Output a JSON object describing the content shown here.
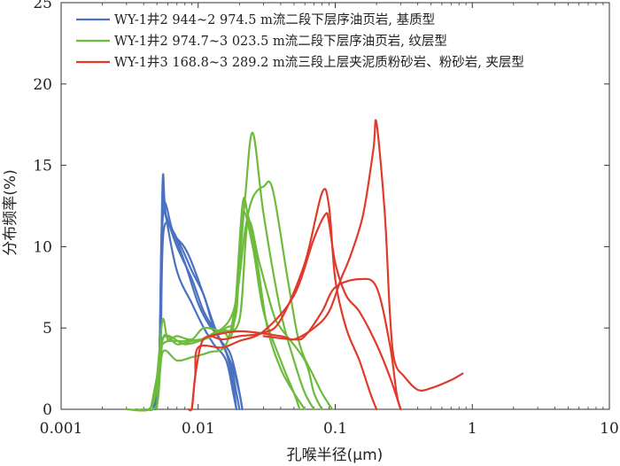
{
  "chart_data": {
    "type": "line",
    "xlabel": "孔喉半径(μm)",
    "ylabel": "分布频率(%)",
    "xscale": "log",
    "xlim": [
      0.001,
      10
    ],
    "ylim": [
      0,
      25
    ],
    "x_ticks": [
      "0.001",
      "0.01",
      "0.1",
      "1",
      "10"
    ],
    "y_ticks": [
      "0",
      "5",
      "10",
      "15",
      "20",
      "25"
    ],
    "legend_position": "top-left",
    "grid": false,
    "colors": {
      "blue": "#4a72c0",
      "green": "#6cbb3c",
      "red": "#e03a2a"
    },
    "legend": [
      {
        "label": "WY-1井2 944~2 974.5 m流二段下层序油页岩, 基质型",
        "color": "#4a72c0"
      },
      {
        "label": "WY-1井2 974.7~3 023.5 m流二段下层序油页岩, 纹层型",
        "color": "#6cbb3c"
      },
      {
        "label": "WY-1井3 168.8~3 289.2 m流三段上层夹泥质粉砂岩、粉砂岩, 夹层型",
        "color": "#e03a2a"
      }
    ],
    "series": [
      {
        "group": "blue",
        "color": "#4a72c0",
        "points": [
          [
            0.0047,
            0
          ],
          [
            0.0052,
            3
          ],
          [
            0.0055,
            14
          ],
          [
            0.0058,
            12
          ],
          [
            0.007,
            8.5
          ],
          [
            0.009,
            6.5
          ],
          [
            0.011,
            5
          ],
          [
            0.013,
            4
          ],
          [
            0.016,
            3
          ],
          [
            0.018,
            1
          ],
          [
            0.019,
            0
          ]
        ]
      },
      {
        "group": "blue",
        "color": "#4a72c0",
        "points": [
          [
            0.0048,
            0
          ],
          [
            0.0052,
            3
          ],
          [
            0.0055,
            12.6
          ],
          [
            0.0058,
            12
          ],
          [
            0.007,
            10
          ],
          [
            0.009,
            8
          ],
          [
            0.011,
            6
          ],
          [
            0.014,
            4.5
          ],
          [
            0.017,
            3
          ],
          [
            0.019,
            1
          ],
          [
            0.02,
            0
          ]
        ]
      },
      {
        "group": "blue",
        "color": "#4a72c0",
        "points": [
          [
            0.0048,
            0
          ],
          [
            0.0052,
            3
          ],
          [
            0.0055,
            11.6
          ],
          [
            0.006,
            11.5
          ],
          [
            0.0075,
            10
          ],
          [
            0.009,
            8.5
          ],
          [
            0.011,
            7
          ],
          [
            0.013,
            5
          ],
          [
            0.016,
            3.5
          ],
          [
            0.018,
            1.5
          ],
          [
            0.019,
            0
          ]
        ]
      },
      {
        "group": "blue",
        "color": "#4a72c0",
        "points": [
          [
            0.0049,
            0
          ],
          [
            0.0053,
            3
          ],
          [
            0.0056,
            11
          ],
          [
            0.007,
            10.5
          ],
          [
            0.0085,
            9.5
          ],
          [
            0.011,
            7
          ],
          [
            0.014,
            4.5
          ],
          [
            0.017,
            3.5
          ],
          [
            0.019,
            2
          ],
          [
            0.021,
            0
          ]
        ]
      },
      {
        "group": "blue",
        "color": "#4a72c0",
        "points": [
          [
            0.0048,
            0
          ],
          [
            0.0052,
            3
          ],
          [
            0.0055,
            12.3
          ],
          [
            0.0065,
            11
          ],
          [
            0.008,
            9
          ],
          [
            0.01,
            6.5
          ],
          [
            0.012,
            5.2
          ],
          [
            0.014,
            4.5
          ],
          [
            0.016,
            3.5
          ],
          [
            0.018,
            2.5
          ],
          [
            0.02,
            1
          ],
          [
            0.021,
            0
          ]
        ]
      },
      {
        "group": "green",
        "color": "#6cbb3c",
        "points": [
          [
            0.003,
            0
          ],
          [
            0.0045,
            0.1
          ],
          [
            0.005,
            2
          ],
          [
            0.0055,
            5.5
          ],
          [
            0.006,
            4.3
          ],
          [
            0.007,
            4.5
          ],
          [
            0.009,
            4.3
          ],
          [
            0.011,
            5
          ],
          [
            0.015,
            4.8
          ],
          [
            0.018,
            5
          ],
          [
            0.021,
            12.5
          ],
          [
            0.023,
            12
          ],
          [
            0.027,
            9
          ],
          [
            0.032,
            5
          ],
          [
            0.04,
            2.5
          ],
          [
            0.05,
            1
          ],
          [
            0.06,
            0
          ]
        ]
      },
      {
        "group": "green",
        "color": "#6cbb3c",
        "points": [
          [
            0.0035,
            0
          ],
          [
            0.0045,
            0.1
          ],
          [
            0.0052,
            2
          ],
          [
            0.0056,
            4.5
          ],
          [
            0.007,
            4
          ],
          [
            0.009,
            4.2
          ],
          [
            0.011,
            4.3
          ],
          [
            0.013,
            4.7
          ],
          [
            0.016,
            5
          ],
          [
            0.019,
            6
          ],
          [
            0.021,
            12
          ],
          [
            0.025,
            10
          ],
          [
            0.03,
            6
          ],
          [
            0.04,
            3
          ],
          [
            0.05,
            1
          ],
          [
            0.055,
            0
          ]
        ]
      },
      {
        "group": "green",
        "color": "#6cbb3c",
        "points": [
          [
            0.004,
            0
          ],
          [
            0.005,
            0.3
          ],
          [
            0.0055,
            3.5
          ],
          [
            0.007,
            3
          ],
          [
            0.009,
            3.2
          ],
          [
            0.012,
            3.5
          ],
          [
            0.016,
            4
          ],
          [
            0.019,
            7
          ],
          [
            0.022,
            13
          ],
          [
            0.025,
            17
          ],
          [
            0.03,
            12
          ],
          [
            0.04,
            6
          ],
          [
            0.05,
            3
          ],
          [
            0.06,
            1
          ],
          [
            0.07,
            0
          ]
        ]
      },
      {
        "group": "green",
        "color": "#6cbb3c",
        "points": [
          [
            0.0045,
            0
          ],
          [
            0.005,
            2
          ],
          [
            0.0055,
            4
          ],
          [
            0.008,
            4.2
          ],
          [
            0.012,
            4.5
          ],
          [
            0.018,
            6
          ],
          [
            0.022,
            11
          ],
          [
            0.025,
            13
          ],
          [
            0.03,
            13.7
          ],
          [
            0.035,
            13.5
          ],
          [
            0.045,
            8
          ],
          [
            0.055,
            4
          ],
          [
            0.07,
            2
          ],
          [
            0.08,
            1
          ],
          [
            0.095,
            0
          ]
        ]
      },
      {
        "group": "green",
        "color": "#6cbb3c",
        "points": [
          [
            0.005,
            0
          ],
          [
            0.0055,
            4.3
          ],
          [
            0.008,
            4
          ],
          [
            0.011,
            4.3
          ],
          [
            0.015,
            4.8
          ],
          [
            0.02,
            5.5
          ],
          [
            0.023,
            11.5
          ],
          [
            0.028,
            9
          ],
          [
            0.035,
            6
          ],
          [
            0.04,
            5
          ],
          [
            0.06,
            3
          ],
          [
            0.07,
            1
          ],
          [
            0.08,
            0
          ]
        ]
      },
      {
        "group": "red",
        "color": "#e03a2a",
        "points": [
          [
            0.0085,
            0
          ],
          [
            0.009,
            0.1
          ],
          [
            0.0095,
            2
          ],
          [
            0.0105,
            4
          ],
          [
            0.012,
            4.5
          ],
          [
            0.015,
            4.3
          ],
          [
            0.02,
            4.5
          ],
          [
            0.03,
            4.7
          ],
          [
            0.04,
            5.5
          ],
          [
            0.06,
            9
          ],
          [
            0.08,
            13.3
          ],
          [
            0.09,
            12.5
          ],
          [
            0.1,
            8
          ],
          [
            0.12,
            5
          ],
          [
            0.15,
            3
          ],
          [
            0.18,
            1
          ],
          [
            0.2,
            0
          ]
        ]
      },
      {
        "group": "red",
        "color": "#e03a2a",
        "points": [
          [
            0.009,
            0
          ],
          [
            0.0095,
            2
          ],
          [
            0.01,
            3.8
          ],
          [
            0.015,
            3.8
          ],
          [
            0.02,
            4.2
          ],
          [
            0.03,
            4.8
          ],
          [
            0.05,
            7
          ],
          [
            0.07,
            10.5
          ],
          [
            0.085,
            12
          ],
          [
            0.09,
            11.5
          ],
          [
            0.1,
            9
          ],
          [
            0.12,
            7
          ],
          [
            0.15,
            6
          ],
          [
            0.2,
            4
          ],
          [
            0.25,
            2
          ],
          [
            0.3,
            0
          ]
        ]
      },
      {
        "group": "red",
        "color": "#e03a2a",
        "points": [
          [
            0.012,
            4.5
          ],
          [
            0.02,
            4.8
          ],
          [
            0.04,
            4.5
          ],
          [
            0.05,
            4.3
          ],
          [
            0.07,
            5
          ],
          [
            0.09,
            6
          ],
          [
            0.11,
            8
          ],
          [
            0.13,
            9.5
          ],
          [
            0.16,
            12
          ],
          [
            0.19,
            16
          ],
          [
            0.2,
            17.6
          ],
          [
            0.23,
            12
          ],
          [
            0.25,
            6
          ],
          [
            0.27,
            3
          ],
          [
            0.32,
            2
          ],
          [
            0.4,
            1.2
          ],
          [
            0.5,
            1.3
          ],
          [
            0.7,
            1.8
          ],
          [
            0.85,
            2.2
          ]
        ]
      },
      {
        "group": "red",
        "color": "#e03a2a",
        "points": [
          [
            0.03,
            4.5
          ],
          [
            0.05,
            4.3
          ],
          [
            0.06,
            4.5
          ],
          [
            0.08,
            6
          ],
          [
            0.1,
            7.5
          ],
          [
            0.15,
            8
          ],
          [
            0.2,
            7.5
          ],
          [
            0.25,
            4
          ],
          [
            0.28,
            1
          ],
          [
            0.3,
            0
          ]
        ]
      }
    ]
  }
}
